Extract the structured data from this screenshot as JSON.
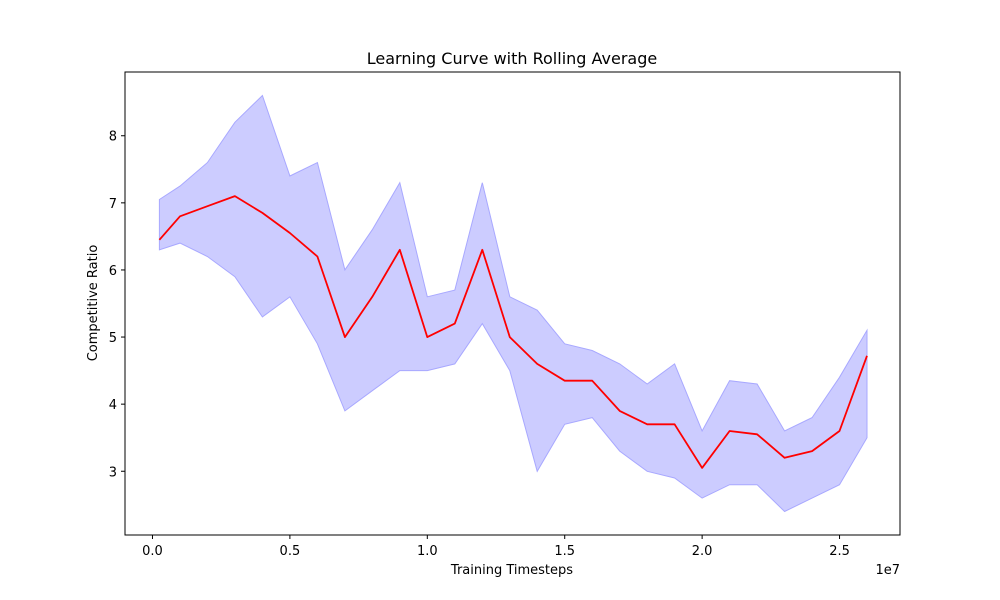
{
  "chart_data": {
    "type": "line",
    "title": "Learning Curve with Rolling Average",
    "xlabel": "Training Timesteps",
    "ylabel": "Competitive Ratio",
    "x_offset_label": "1e7",
    "xlim": [
      -0.1,
      2.72
    ],
    "ylim": [
      2.05,
      8.95
    ],
    "xticks": [
      0.0,
      0.5,
      1.0,
      1.5,
      2.0,
      2.5
    ],
    "xtick_labels": [
      "0.0",
      "0.5",
      "1.0",
      "1.5",
      "2.0",
      "2.5"
    ],
    "yticks": [
      3,
      4,
      5,
      6,
      7,
      8
    ],
    "ytick_labels": [
      "3",
      "4",
      "5",
      "6",
      "7",
      "8"
    ],
    "grid": false,
    "legend": "none",
    "line_color": "#ff0000",
    "band_color": "#ccccff",
    "band_edge_color": "#a8a8ff",
    "series": [
      {
        "kind": "rolling_mean",
        "x": [
          0.025,
          0.1,
          0.2,
          0.3,
          0.4,
          0.5,
          0.6,
          0.7,
          0.8,
          0.9,
          1.0,
          1.1,
          1.2,
          1.3,
          1.4,
          1.5,
          1.6,
          1.7,
          1.8,
          1.9,
          2.0,
          2.1,
          2.2,
          2.3,
          2.4,
          2.5,
          2.6
        ],
        "y": [
          6.45,
          6.8,
          6.95,
          7.1,
          6.85,
          6.55,
          6.2,
          5.0,
          5.6,
          6.3,
          5.0,
          5.2,
          6.3,
          5.0,
          4.6,
          4.35,
          4.35,
          3.9,
          3.7,
          3.7,
          3.05,
          3.6,
          3.55,
          3.2,
          3.3,
          3.6,
          4.72
        ]
      },
      {
        "kind": "band_upper",
        "x": [
          0.025,
          0.1,
          0.2,
          0.3,
          0.4,
          0.5,
          0.6,
          0.7,
          0.8,
          0.9,
          1.0,
          1.1,
          1.2,
          1.3,
          1.4,
          1.5,
          1.6,
          1.7,
          1.8,
          1.9,
          2.0,
          2.1,
          2.2,
          2.3,
          2.4,
          2.5,
          2.6
        ],
        "y": [
          7.05,
          7.25,
          7.6,
          8.2,
          8.6,
          7.4,
          7.6,
          6.0,
          6.6,
          7.3,
          5.6,
          5.7,
          7.3,
          5.6,
          5.4,
          4.9,
          4.8,
          4.6,
          4.3,
          4.6,
          3.6,
          4.35,
          4.3,
          3.6,
          3.8,
          4.4,
          5.1
        ]
      },
      {
        "kind": "band_lower",
        "x": [
          0.025,
          0.1,
          0.2,
          0.3,
          0.4,
          0.5,
          0.6,
          0.7,
          0.8,
          0.9,
          1.0,
          1.1,
          1.2,
          1.3,
          1.4,
          1.5,
          1.6,
          1.7,
          1.8,
          1.9,
          2.0,
          2.1,
          2.2,
          2.3,
          2.4,
          2.5,
          2.6
        ],
        "y": [
          6.3,
          6.4,
          6.2,
          5.9,
          5.3,
          5.6,
          4.9,
          3.9,
          4.2,
          4.5,
          4.5,
          4.6,
          5.2,
          4.5,
          3.0,
          3.7,
          3.8,
          3.3,
          3.0,
          2.9,
          2.6,
          2.8,
          2.8,
          2.4,
          2.6,
          2.8,
          3.5
        ]
      }
    ]
  }
}
